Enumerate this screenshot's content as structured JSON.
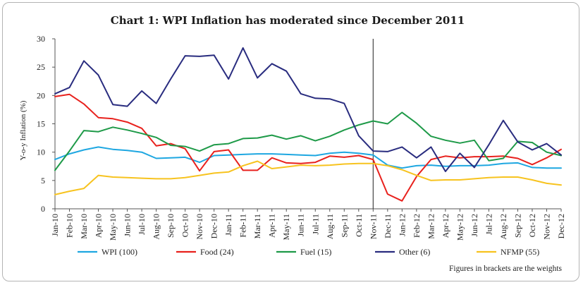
{
  "chart_data": {
    "type": "line",
    "title": "Chart 1: WPI Inflation has moderated since December 2011",
    "ylabel": "Y-o-y Inflation (%)",
    "xlabel": "",
    "ylim": [
      0,
      30
    ],
    "yticks": [
      0,
      5,
      10,
      15,
      20,
      25,
      30
    ],
    "grid": false,
    "legend_position": "bottom",
    "vertical_marker_category": "Nov-11",
    "note": "Figures in brackets are the weights",
    "categories": [
      "Jan-10",
      "Feb-10",
      "Mar-10",
      "Apr-10",
      "May-10",
      "Jun-10",
      "Jul-10",
      "Aug-10",
      "Sep-10",
      "Oct-10",
      "Nov-10",
      "Dec-10",
      "Jan-11",
      "Feb-11",
      "Mar-11",
      "Apr-11",
      "May-11",
      "Jun-11",
      "Jul-11",
      "Aug-11",
      "Sep-11",
      "Oct-11",
      "Nov-11",
      "Dec-11",
      "Jan-12",
      "Feb-12",
      "Mar-12",
      "Apr-12",
      "May-12",
      "Jun-12",
      "Jul-12",
      "Aug-12",
      "Sep-12",
      "Oct-12",
      "Nov-12",
      "Dec-12"
    ],
    "series": [
      {
        "name": "WPI (100)",
        "color": "#1ea7e1",
        "values": [
          8.7,
          9.7,
          10.4,
          10.9,
          10.5,
          10.3,
          10.0,
          8.9,
          9.0,
          9.1,
          8.2,
          9.4,
          9.5,
          9.6,
          9.7,
          9.7,
          9.6,
          9.5,
          9.4,
          9.8,
          10.0,
          9.8,
          9.5,
          7.7,
          7.2,
          7.6,
          7.7,
          7.5,
          7.6,
          7.6,
          7.7,
          8.0,
          8.1,
          7.3,
          7.2,
          7.2
        ]
      },
      {
        "name": "Food (24)",
        "color": "#e8211d",
        "values": [
          19.8,
          20.2,
          18.5,
          16.1,
          15.9,
          15.3,
          14.2,
          11.1,
          11.5,
          10.6,
          6.7,
          10.1,
          10.4,
          6.8,
          6.8,
          9.0,
          8.1,
          8.0,
          8.2,
          9.3,
          9.1,
          9.4,
          8.7,
          2.6,
          1.4,
          5.7,
          8.7,
          9.3,
          9.0,
          9.2,
          9.2,
          9.3,
          8.9,
          7.8,
          9.0,
          10.5
        ]
      },
      {
        "name": "Fuel (15)",
        "color": "#1e9a48",
        "values": [
          6.8,
          10.2,
          13.8,
          13.6,
          14.4,
          13.9,
          13.3,
          12.6,
          11.2,
          11.0,
          10.2,
          11.3,
          11.5,
          12.4,
          12.5,
          13.0,
          12.3,
          12.9,
          12.0,
          12.8,
          13.9,
          14.8,
          15.5,
          15.0,
          17.0,
          15.1,
          12.8,
          12.1,
          11.6,
          12.1,
          8.5,
          8.9,
          11.9,
          11.7,
          10.0,
          9.4
        ]
      },
      {
        "name": "Other (6)",
        "color": "#292c7f",
        "values": [
          20.3,
          21.4,
          26.1,
          23.6,
          18.4,
          18.1,
          20.8,
          18.6,
          22.9,
          27.0,
          26.9,
          27.1,
          22.9,
          28.4,
          23.1,
          25.6,
          24.3,
          20.3,
          19.5,
          19.4,
          18.6,
          12.9,
          10.2,
          10.1,
          10.9,
          9.0,
          10.9,
          6.6,
          9.8,
          7.3,
          11.3,
          15.6,
          11.8,
          10.4,
          11.5,
          9.5
        ]
      },
      {
        "name": "NFMP (55)",
        "color": "#f7c31f",
        "values": [
          2.5,
          3.1,
          3.6,
          5.9,
          5.6,
          5.5,
          5.4,
          5.3,
          5.3,
          5.5,
          5.9,
          6.3,
          6.5,
          7.6,
          8.4,
          7.1,
          7.4,
          7.7,
          7.6,
          7.7,
          7.9,
          8.0,
          8.0,
          7.6,
          6.9,
          5.9,
          5.0,
          5.1,
          5.1,
          5.3,
          5.5,
          5.6,
          5.6,
          5.1,
          4.5,
          4.2
        ]
      }
    ]
  }
}
